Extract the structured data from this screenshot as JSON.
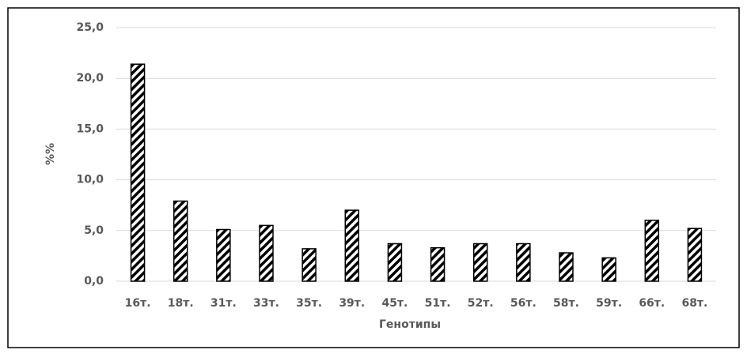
{
  "chart_data": {
    "type": "bar",
    "x_label": "Генотипы",
    "y_label": "%%",
    "categories": [
      "16т.",
      "18т.",
      "31т.",
      "33т.",
      "35т.",
      "39т.",
      "45т.",
      "51т.",
      "52т.",
      "56т.",
      "58т.",
      "59т.",
      "66т.",
      "68т."
    ],
    "values": [
      21.4,
      7.9,
      5.1,
      5.5,
      3.2,
      7.0,
      3.7,
      3.3,
      3.7,
      3.7,
      2.8,
      2.3,
      6.0,
      5.2
    ],
    "color": "#000000",
    "ylim": [
      0,
      25
    ],
    "yticks": [
      {
        "value": 0,
        "label": "0,0"
      },
      {
        "value": 5,
        "label": "5,0"
      },
      {
        "value": 10,
        "label": "10,0"
      },
      {
        "value": 15,
        "label": "15,0"
      },
      {
        "value": 20,
        "label": "20,0"
      },
      {
        "value": 25,
        "label": "25,0"
      }
    ],
    "grid": true
  }
}
